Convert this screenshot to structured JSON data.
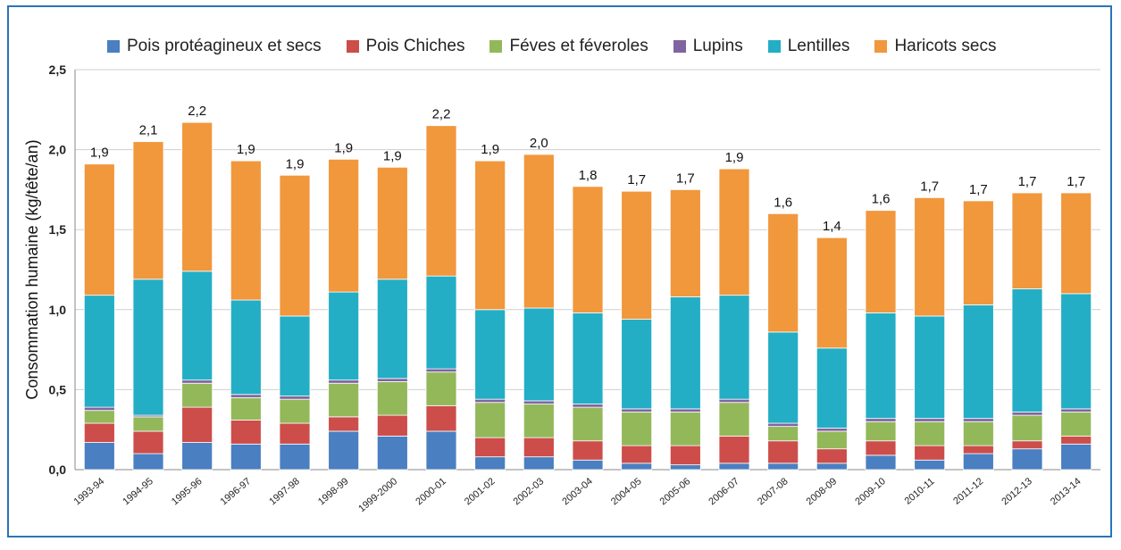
{
  "chart_data": {
    "type": "bar",
    "stacked": true,
    "ylabel": "Consommation humaine (kg/tête/an)",
    "ylim": [
      0,
      2.5
    ],
    "yticks": [
      "0,0",
      "0,5",
      "1,0",
      "1,5",
      "2,0",
      "2,5"
    ],
    "ytick_values": [
      0,
      0.5,
      1.0,
      1.5,
      2.0,
      2.5
    ],
    "grid": "horizontal",
    "legend_position": "top",
    "categories": [
      "1993-94",
      "1994-95",
      "1995-96",
      "1996-97",
      "1997-98",
      "1998-99",
      "1999-2000",
      "2000-01",
      "2001-02",
      "2002-03",
      "2003-04",
      "2004-05",
      "2005-06",
      "2006-07",
      "2007-08",
      "2008-09",
      "2009-10",
      "2010-11",
      "2011-12",
      "2012-13",
      "2013-14"
    ],
    "series": [
      {
        "name": "Pois protéagineux et secs",
        "color": "#4a7fc1",
        "values": [
          0.17,
          0.1,
          0.17,
          0.16,
          0.16,
          0.24,
          0.21,
          0.24,
          0.08,
          0.08,
          0.06,
          0.04,
          0.03,
          0.04,
          0.04,
          0.04,
          0.09,
          0.06,
          0.1,
          0.13,
          0.16
        ]
      },
      {
        "name": "Pois Chiches",
        "color": "#cc4d4a",
        "values": [
          0.12,
          0.14,
          0.22,
          0.15,
          0.13,
          0.09,
          0.13,
          0.16,
          0.12,
          0.12,
          0.12,
          0.11,
          0.12,
          0.17,
          0.14,
          0.09,
          0.09,
          0.09,
          0.05,
          0.05,
          0.05
        ]
      },
      {
        "name": "Féves et féveroles",
        "color": "#93b85a",
        "values": [
          0.08,
          0.09,
          0.15,
          0.14,
          0.15,
          0.21,
          0.21,
          0.21,
          0.22,
          0.21,
          0.21,
          0.21,
          0.21,
          0.21,
          0.09,
          0.11,
          0.12,
          0.15,
          0.15,
          0.16,
          0.15
        ]
      },
      {
        "name": "Lupins",
        "color": "#8064a2",
        "values": [
          0.02,
          0.01,
          0.02,
          0.02,
          0.02,
          0.02,
          0.02,
          0.02,
          0.02,
          0.02,
          0.02,
          0.02,
          0.02,
          0.02,
          0.02,
          0.02,
          0.02,
          0.02,
          0.02,
          0.02,
          0.02
        ]
      },
      {
        "name": "Lentilles",
        "color": "#23aec5",
        "values": [
          0.7,
          0.85,
          0.68,
          0.59,
          0.5,
          0.55,
          0.62,
          0.58,
          0.56,
          0.58,
          0.57,
          0.56,
          0.7,
          0.65,
          0.57,
          0.5,
          0.66,
          0.64,
          0.71,
          0.77,
          0.72
        ]
      },
      {
        "name": "Haricots secs",
        "color": "#f1973c",
        "values": [
          0.82,
          0.86,
          0.93,
          0.87,
          0.88,
          0.83,
          0.7,
          0.94,
          0.93,
          0.96,
          0.79,
          0.8,
          0.67,
          0.79,
          0.74,
          0.69,
          0.64,
          0.74,
          0.65,
          0.6,
          0.63
        ]
      }
    ],
    "totals": [
      "1,9",
      "2,1",
      "2,2",
      "1,9",
      "1,9",
      "1,9",
      "1,9",
      "2,2",
      "1,9",
      "2,0",
      "1,8",
      "1,7",
      "1,7",
      "1,9",
      "1,6",
      "1,4",
      "1,6",
      "1,7",
      "1,7",
      "1,7",
      "1,7"
    ]
  }
}
